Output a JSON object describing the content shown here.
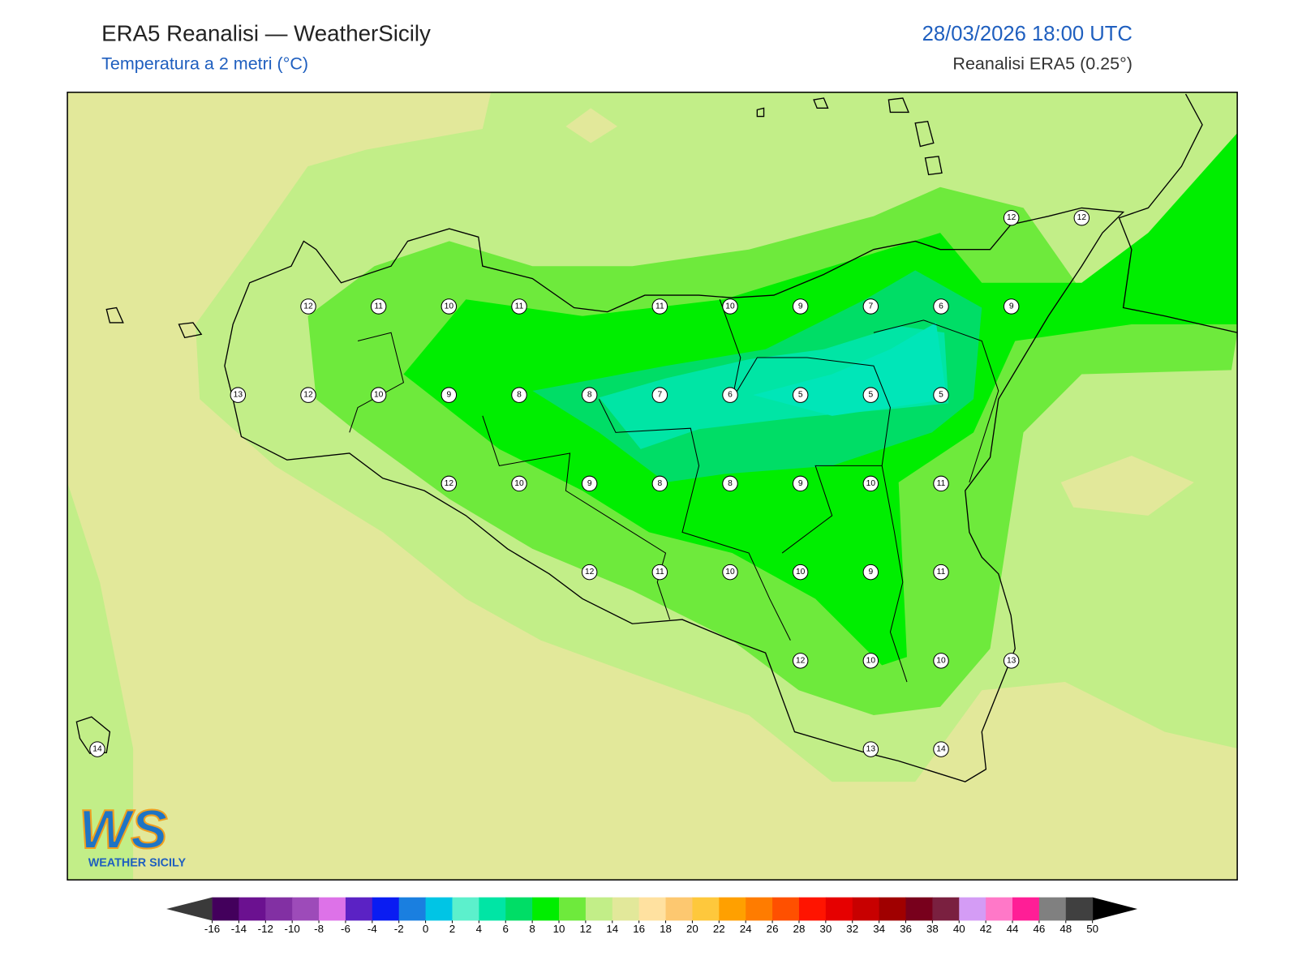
{
  "header": {
    "title": "ERA5 Reanalisi — WeatherSicily",
    "subtitle": "Temperatura a 2 metri (°C)",
    "datetime": "28/03/2026 18:00 UTC",
    "source": "Reanalisi ERA5 (0.25°)"
  },
  "stations": [
    12,
    12,
    12,
    11,
    10,
    11,
    11,
    10,
    9,
    7,
    6,
    9,
    13,
    12,
    10,
    9,
    8,
    8,
    7,
    6,
    5,
    5,
    5,
    12,
    10,
    9,
    8,
    8,
    9,
    10,
    11,
    12,
    11,
    10,
    10,
    9,
    11,
    12,
    10,
    10,
    13,
    14,
    13,
    14
  ],
  "colorbar": {
    "ticks": [
      -16,
      -14,
      -12,
      -10,
      -8,
      -6,
      -4,
      -2,
      0,
      2,
      4,
      6,
      8,
      10,
      12,
      14,
      16,
      18,
      20,
      22,
      24,
      26,
      28,
      30,
      32,
      34,
      36,
      38,
      40,
      42,
      44,
      46,
      48,
      50
    ],
    "colors": [
      "#43005c",
      "#6b1190",
      "#8230a3",
      "#9d4bb9",
      "#dd72e8",
      "#5b22c4",
      "#0a1cf2",
      "#1a7fe0",
      "#00c5e5",
      "#5cf0cc",
      "#00e5a5",
      "#00dd66",
      "#00ee00",
      "#6eea3c",
      "#c2ee88",
      "#e2e89a",
      "#ffe1a0",
      "#fdc870",
      "#fec83c",
      "#ffa000",
      "#ff7c00",
      "#ff5000",
      "#ff1400",
      "#e60000",
      "#c80000",
      "#a00000",
      "#78001c",
      "#7a2040",
      "#d49cf5",
      "#ff78c8",
      "#ff1e96",
      "#808080",
      "#404040"
    ],
    "under": "#3a3a3a",
    "over": "#000000"
  },
  "logo": {
    "mark": "WS",
    "name": "WEATHER SICILY"
  }
}
